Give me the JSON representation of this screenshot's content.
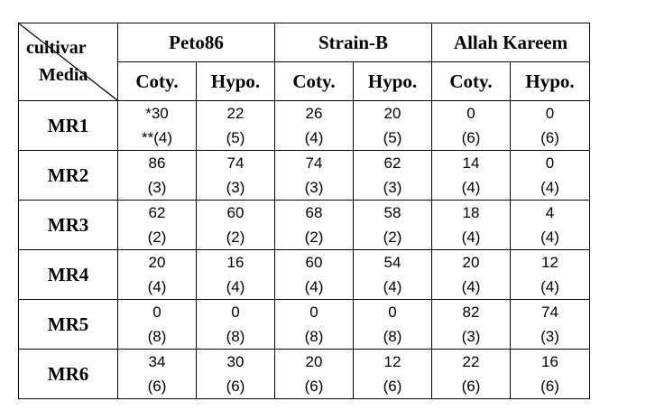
{
  "corner": {
    "top_label": "cultivar",
    "bottom_label": "Media"
  },
  "cultivars": [
    "Peto86",
    "Strain-B",
    "Allah Kareem"
  ],
  "subheaders": [
    "Coty.",
    "Hypo.",
    "Coty.",
    "Hypo.",
    "Coty.",
    "Hypo."
  ],
  "rows": [
    {
      "media": "MR1",
      "top": [
        "*30",
        "22",
        "26",
        "20",
        "0",
        "0"
      ],
      "bottom": [
        "**(4)",
        "(5)",
        "(4)",
        "(5)",
        "(6)",
        "(6)"
      ]
    },
    {
      "media": "MR2",
      "top": [
        "86",
        "74",
        "74",
        "62",
        "14",
        "0"
      ],
      "bottom": [
        "(3)",
        "(3)",
        "(3)",
        "(3)",
        "(4)",
        "(4)"
      ]
    },
    {
      "media": "MR3",
      "top": [
        "62",
        "60",
        "68",
        "58",
        "18",
        "4"
      ],
      "bottom": [
        "(2)",
        "(2)",
        "(2)",
        "(2)",
        "(4)",
        "(4)"
      ]
    },
    {
      "media": "MR4",
      "top": [
        "20",
        "16",
        "60",
        "54",
        "20",
        "12"
      ],
      "bottom": [
        "(4)",
        "(4)",
        "(4)",
        "(4)",
        "(4)",
        "(4)"
      ]
    },
    {
      "media": "MR5",
      "top": [
        "0",
        "0",
        "0",
        "0",
        "82",
        "74"
      ],
      "bottom": [
        "(8)",
        "(8)",
        "(8)",
        "(8)",
        "(3)",
        "(3)"
      ]
    },
    {
      "media": "MR6",
      "top": [
        "34",
        "30",
        "20",
        "12",
        "22",
        "16"
      ],
      "bottom": [
        "(6)",
        "(6)",
        "(6)",
        "(6)",
        "(6)",
        "(6)"
      ]
    }
  ]
}
